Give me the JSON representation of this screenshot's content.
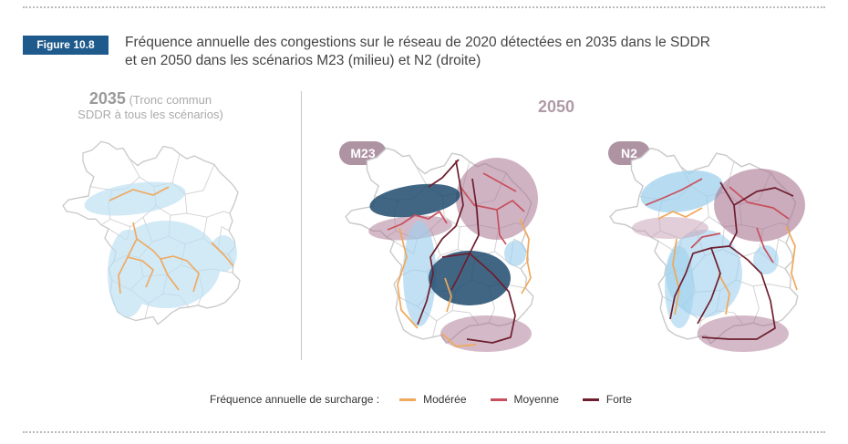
{
  "figure": {
    "number": "Figure 10.8",
    "title_lines": [
      "Fréquence annuelle des congestions sur le réseau de 2020 détectées en 2035 dans le SDDR",
      "et en 2050 dans les scénarios M23 (milieu) et N2 (droite)"
    ]
  },
  "panels": {
    "p2035": {
      "year": "2035",
      "note_line1": "(Tronc commun",
      "note_line2": "SDDR à tous les scénarios)"
    },
    "p2050": {
      "year": "2050",
      "scenario_m23": "M23",
      "scenario_n2": "N2"
    }
  },
  "legend": {
    "title": "Fréquence annuelle de surcharge :",
    "items": [
      {
        "label": "Modérée",
        "color": "#f0a85a"
      },
      {
        "label": "Moyenne",
        "color": "#c8505e"
      },
      {
        "label": "Forte",
        "color": "#6e1e2e"
      }
    ]
  },
  "colors": {
    "brand": "#1e5a8c",
    "pill": "#ae93a3",
    "zone_light_blue": "#a9d5ee",
    "zone_dark_blue": "#1f4b6e",
    "zone_mauve": "#a97591"
  }
}
